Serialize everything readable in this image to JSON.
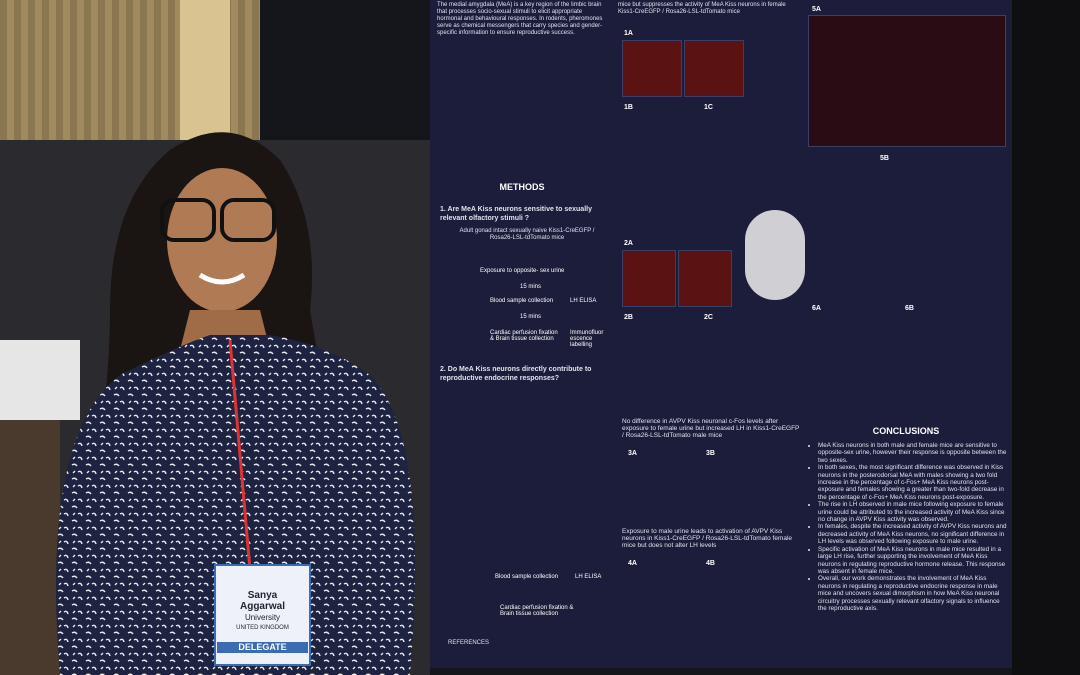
{
  "poster": {
    "intro": "The medial amygdala (MeA) is a key region of the limbic brain that processes socio-sexual stimuli to elicit appropriate hormonal and behavioural responses. In rodents, pheromones serve as chemical messengers that carry species and gender-specific information to ensure reproductive success.",
    "top_middle": "mice but suppresses the activity of MeA Kiss neurons in female Kiss1-CreEGFP / Rosa26-LSL-tdTomato mice",
    "methods": {
      "heading": "METHODS",
      "q1": "1. Are MeA Kiss neurons sensitive to sexually relevant olfactory stimuli ?",
      "mice": "Adult gonad intact sexually naive Kiss1-CreEGFP / Rosa26-LSL-tdTomato mice",
      "steps": [
        "Exposure to opposite- sex urine",
        "15 mins",
        "Blood sample collection",
        "LH ELISA",
        "15 mins",
        "Cardiac perfusion fixation & Brain tissue collection",
        "Immunofluor escence labelling"
      ],
      "q2": "2. Do MeA Kiss neurons directly contribute to reproductive endocrine responses?",
      "bottom_steps": [
        "Blood sample collection",
        "LH ELISA",
        "Cardiac perfusion fixation & Brain tissue collection"
      ]
    },
    "panels": [
      "1A",
      "1B",
      "1C",
      "2A",
      "2B",
      "2C",
      "3A",
      "3B",
      "4A",
      "4B",
      "5A",
      "5B",
      "6A",
      "6B"
    ],
    "results": [
      "No difference in AVPV Kiss neuronal c-Fos levels after exposure to female urine but increased LH in Kiss1-CreEGFP / Rosa26-LSL-tdTomato male mice",
      "Exposure to male urine leads to activation of AVPV Kiss neurons in Kiss1-CreEGFP / Rosa26-LSL-tdTomato female mice but does not alter LH levels"
    ],
    "conclusions": {
      "heading": "CONCLUSIONS",
      "points": [
        "MeA Kiss neurons in both male and female mice are sensitive to opposite-sex urine, however their response is opposite between the two sexes.",
        "In both sexes, the most significant difference was observed in Kiss neurons in the posterodorsal MeA with males showing a two fold increase in the percentage of c-Fos+ MeA Kiss neurons post-exposure and females showing a greater than two-fold decrease in the percentage of c-Fos+ MeA Kiss neurons post-exposure.",
        "The rise in LH observed in male mice following exposure to female urine could be attributed to the increased activity of MeA Kiss since no change in AVPV Kiss activity was observed.",
        "In females, despite the increased activity of AVPV Kiss neurons and decreased activity of MeA Kiss neurons, no significant difference in LH levels was observed following exposure to male urine.",
        "Specific activation of MeA Kiss neurons in male mice resulted in a large LH rise, further supporting the involvement of MeA Kiss neurons in regulating reproductive hormone release. This response was absent in female mice.",
        "Overall, our work demonstrates the involvement of MeA Kiss neurons in regulating a reproductive endocrine response in male mice and uncovers sexual dimorphism in how MeA Kiss neuronal circuitry processes sexually relevant olfactory signals to influence the reproductive axis."
      ]
    },
    "references": "REFERENCES"
  },
  "badge": {
    "name": "Sanya",
    "surname": "Aggarwal",
    "org": "University",
    "country": "UNITED KINGDOM",
    "role": "DELEGATE"
  }
}
